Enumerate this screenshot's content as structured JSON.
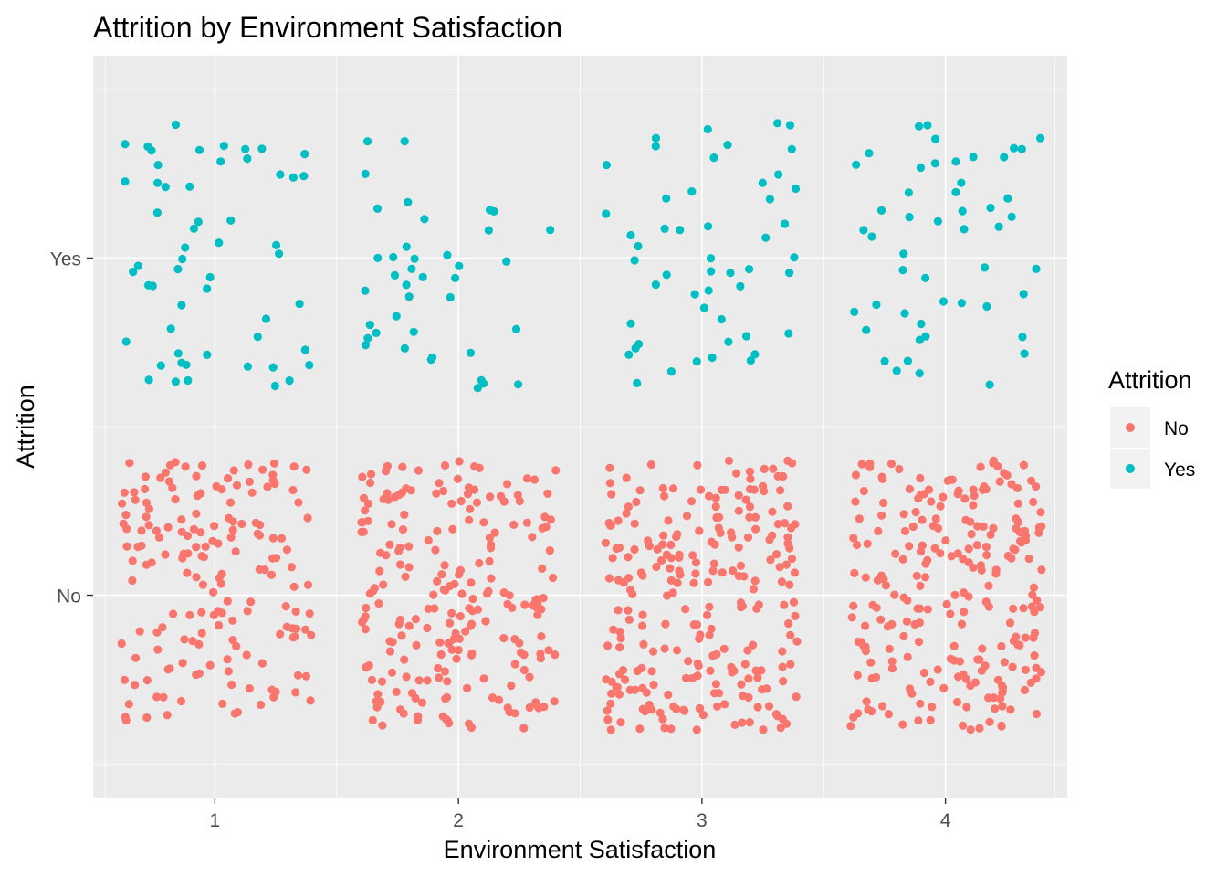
{
  "chart_data": {
    "type": "scatter",
    "title": "Attrition by Environment Satisfaction",
    "xlabel": "Environment Satisfaction",
    "ylabel": "Attrition",
    "x_ticks": [
      "1",
      "2",
      "3",
      "4"
    ],
    "y_ticks": [
      "No",
      "Yes"
    ],
    "xlim": [
      0.5,
      4.5
    ],
    "ylim": [
      0.4,
      2.6
    ],
    "grid": true,
    "jitter": {
      "width": 0.4,
      "height": 0.4
    },
    "legend": {
      "title": "Attrition",
      "position": "right",
      "entries": [
        {
          "label": "No",
          "color": "#F8766D"
        },
        {
          "label": "Yes",
          "color": "#00BFC4"
        }
      ]
    },
    "series": [
      {
        "name": "No",
        "color": "#F8766D",
        "y": 1,
        "counts_by_x": {
          "1": 170,
          "2": 220,
          "3": 250,
          "4": 240
        }
      },
      {
        "name": "Yes",
        "color": "#00BFC4",
        "y": 2,
        "counts_by_x": {
          "1": 55,
          "2": 40,
          "3": 50,
          "4": 50
        }
      }
    ]
  },
  "colors": {
    "panel_background": "#EBEBEB",
    "grid_major": "#FFFFFF",
    "tick_text": "#4D4D4D",
    "tick_mark": "#333333"
  }
}
